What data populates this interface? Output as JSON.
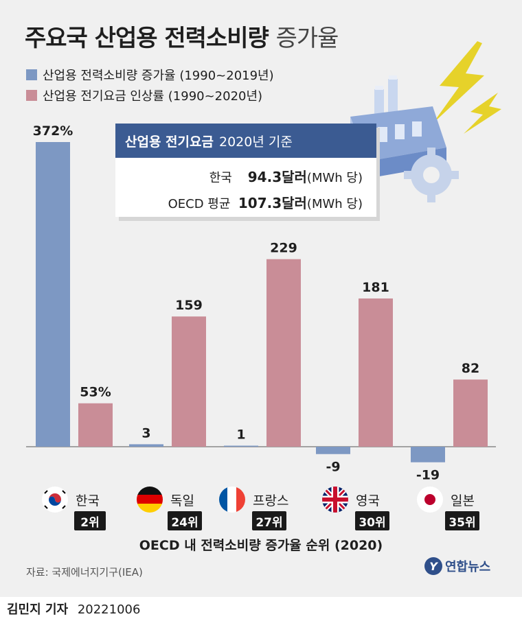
{
  "title": {
    "bold": "주요국 산업용 전력소비량",
    "light": "증가율"
  },
  "legend": [
    {
      "label": "산업용 전력소비량 증가율 (1990~2019년)",
      "color": "#7d98c3"
    },
    {
      "label": "산업용 전기요금 인상률 (1990~2020년)",
      "color": "#c98d97"
    }
  ],
  "infobox": {
    "title_bold": "산업용 전기요금",
    "title_light": "2020년 기준",
    "rows": [
      {
        "label": "한국",
        "value": "94.3달러",
        "unit": "(MWh 당)"
      },
      {
        "label": "OECD 평균",
        "value": "107.3달러",
        "unit": "(MWh 당)"
      }
    ]
  },
  "chart_data": {
    "type": "bar",
    "categories": [
      "한국",
      "독일",
      "프랑스",
      "영국",
      "일본"
    ],
    "series": [
      {
        "name": "산업용 전력소비량 증가율 (1990~2019년)",
        "values": [
          372,
          3,
          1,
          -9,
          -19
        ],
        "labels": [
          "372%",
          "3",
          "1",
          "-9",
          "-19"
        ],
        "color": "#7d98c3"
      },
      {
        "name": "산업용 전기요금 인상률 (1990~2020년)",
        "values": [
          53,
          159,
          229,
          181,
          82
        ],
        "labels": [
          "53%",
          "159",
          "229",
          "181",
          "82"
        ],
        "color": "#c98d97"
      }
    ]
  },
  "countries": [
    {
      "name": "한국",
      "rank": "2위",
      "flag": "korea-flag-icon"
    },
    {
      "name": "독일",
      "rank": "24위",
      "flag": "germany-flag-icon"
    },
    {
      "name": "프랑스",
      "rank": "27위",
      "flag": "france-flag-icon"
    },
    {
      "name": "영국",
      "rank": "30위",
      "flag": "uk-flag-icon"
    },
    {
      "name": "일본",
      "rank": "35위",
      "flag": "japan-flag-icon"
    }
  ],
  "rank_caption": "OECD 내 전력소비량 증가율 순위 (2020)",
  "source": "자료: 국제에너지기구(IEA)",
  "logo": {
    "mark": "Y",
    "text": "연합뉴스"
  },
  "footer": {
    "author": "김민지 기자",
    "date": "20221006"
  }
}
